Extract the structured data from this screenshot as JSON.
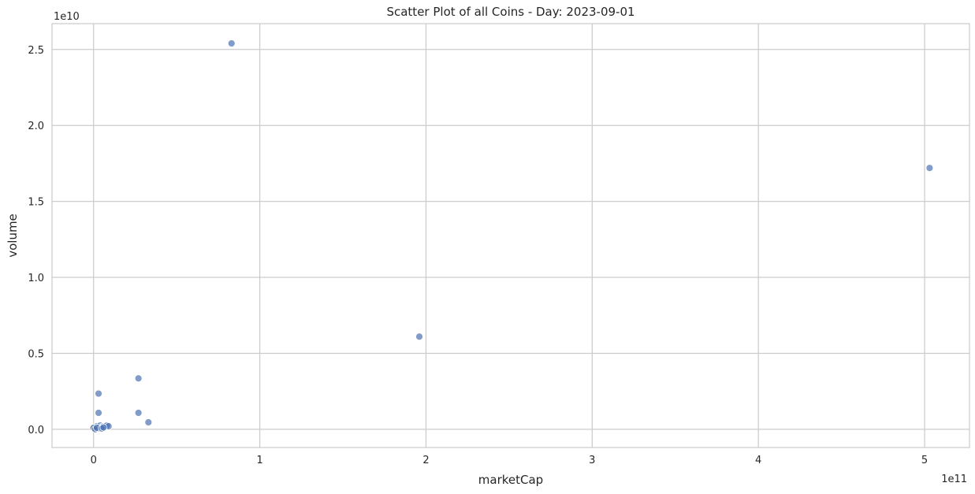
{
  "chart_data": {
    "type": "scatter",
    "title": "Scatter Plot of all Coins - Day: 2023-09-01",
    "xlabel": "marketCap",
    "ylabel": "volume",
    "x_offset_label": "1e11",
    "y_offset_label": "1e10",
    "xlim": [
      -0.25,
      5.27
    ],
    "ylim": [
      -0.12,
      2.67
    ],
    "x_ticks": [
      0,
      1,
      2,
      3,
      4,
      5
    ],
    "x_tick_labels": [
      "0",
      "1",
      "2",
      "3",
      "4",
      "5"
    ],
    "y_ticks": [
      0.0,
      0.5,
      1.0,
      1.5,
      2.0,
      2.5
    ],
    "y_tick_labels": [
      "0.0",
      "0.5",
      "1.0",
      "1.5",
      "2.0",
      "2.5"
    ],
    "grid": true,
    "point_color": "#4c72b0",
    "x": [
      0.83,
      5.03,
      1.96,
      0.27,
      0.03,
      0.03,
      0.27,
      0.33,
      0.0,
      0.01,
      0.02,
      0.03,
      0.04,
      0.05,
      0.06,
      0.07,
      0.08,
      0.09,
      0.0,
      0.01,
      0.02,
      0.05,
      0.06
    ],
    "y": [
      2.54,
      1.72,
      0.61,
      0.335,
      0.235,
      0.108,
      0.108,
      0.046,
      0.005,
      0.01,
      0.02,
      0.005,
      0.025,
      0.015,
      0.02,
      0.02,
      0.025,
      0.02,
      0.01,
      0.0,
      0.01,
      0.005,
      0.012
    ]
  }
}
